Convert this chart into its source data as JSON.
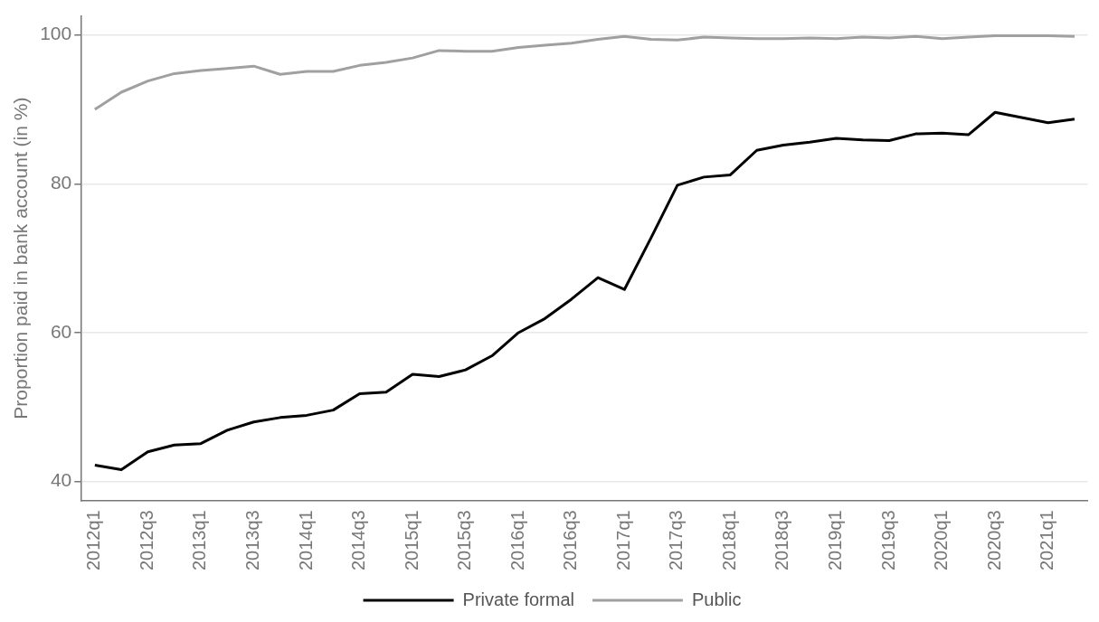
{
  "chart_data": {
    "type": "line",
    "ylabel": "Proportion paid in bank account (in %)",
    "categories": [
      "2012q1",
      null,
      "2012q3",
      null,
      "2013q1",
      null,
      "2013q3",
      null,
      "2014q1",
      null,
      "2014q3",
      null,
      "2015q1",
      null,
      "2015q3",
      null,
      "2016q1",
      null,
      "2016q3",
      null,
      "2017q1",
      null,
      "2017q3",
      null,
      "2018q1",
      null,
      "2018q3",
      null,
      "2019q1",
      null,
      "2019q3",
      null,
      "2020q1",
      null,
      "2020q3",
      null,
      "2021q1",
      null
    ],
    "series": [
      {
        "name": "Private formal",
        "color": "#000000",
        "values": [
          42.2,
          41.6,
          44.0,
          44.9,
          45.1,
          46.9,
          48.0,
          48.6,
          48.9,
          49.6,
          51.8,
          52.0,
          54.4,
          54.1,
          55.0,
          56.9,
          60.0,
          61.9,
          64.5,
          67.4,
          65.8,
          72.7,
          79.8,
          80.9,
          81.2,
          84.5,
          85.2,
          85.6,
          86.1,
          85.9,
          85.8,
          86.7,
          86.8,
          86.6,
          89.6,
          88.9,
          88.2,
          88.7
        ]
      },
      {
        "name": "Public",
        "color": "#a0a0a0",
        "values": [
          90.0,
          92.3,
          93.8,
          94.8,
          95.2,
          95.5,
          95.8,
          94.7,
          95.1,
          95.1,
          95.9,
          96.3,
          96.9,
          97.9,
          97.8,
          97.8,
          98.3,
          98.6,
          98.9,
          99.4,
          99.8,
          99.4,
          99.3,
          99.7,
          99.6,
          99.5,
          99.5,
          99.6,
          99.5,
          99.7,
          99.6,
          99.8,
          99.5,
          99.7,
          99.9,
          99.9,
          99.9,
          99.8
        ]
      }
    ],
    "ylim": [
      37.5,
      102.5
    ],
    "yticks": [
      40,
      60,
      80,
      100
    ],
    "grid": "y",
    "legend": "bottom",
    "marker": "none",
    "line_style": "solid"
  }
}
